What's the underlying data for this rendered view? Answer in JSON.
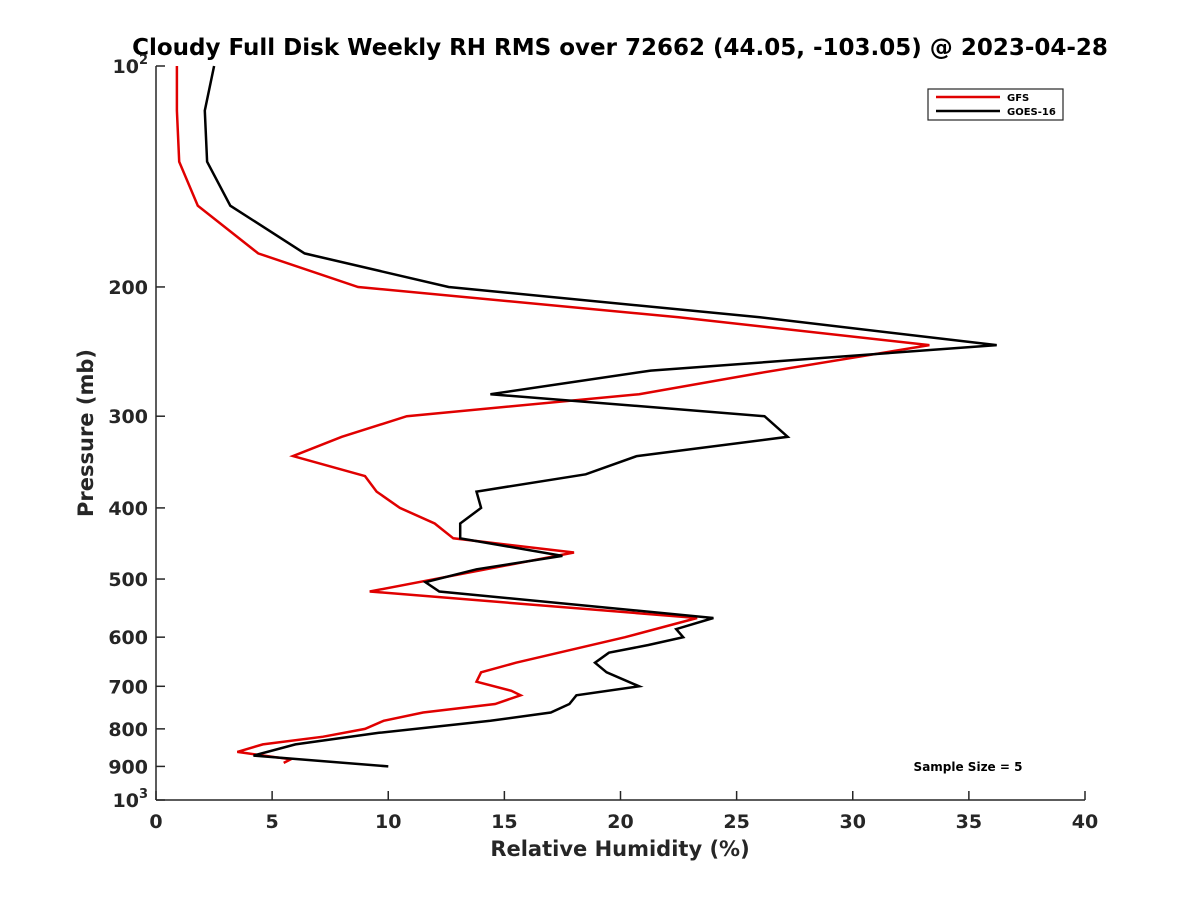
{
  "chart_data": {
    "type": "line",
    "title": "Cloudy Full Disk Weekly RH RMS over 72662 (44.05, -103.05) @ 2023-04-28",
    "xlabel": "Relative Humidity (%)",
    "ylabel": "Pressure (mb)",
    "xlim": [
      0,
      40
    ],
    "ylim": [
      100,
      1000
    ],
    "y_scale": "log",
    "y_reversed": true,
    "x_ticks": [
      "0",
      "5",
      "10",
      "15",
      "20",
      "25",
      "30",
      "35",
      "40"
    ],
    "y_ticks": [
      {
        "value": 100,
        "base": "10",
        "exp": "2"
      },
      {
        "value": 200,
        "label": "200"
      },
      {
        "value": 300,
        "label": "300"
      },
      {
        "value": 400,
        "label": "400"
      },
      {
        "value": 500,
        "label": "500"
      },
      {
        "value": 600,
        "label": "600"
      },
      {
        "value": 700,
        "label": "700"
      },
      {
        "value": 800,
        "label": "800"
      },
      {
        "value": 900,
        "label": "900"
      },
      {
        "value": 1000,
        "base": "10",
        "exp": "3"
      }
    ],
    "grid": false,
    "legend_position": "top-right",
    "note": "Sample Size = 5",
    "series": [
      {
        "name": "GFS",
        "color": "#e00000",
        "points": [
          [
            0.9,
            100
          ],
          [
            0.9,
            115
          ],
          [
            1.0,
            135
          ],
          [
            1.8,
            155
          ],
          [
            4.4,
            180
          ],
          [
            8.7,
            200
          ],
          [
            22.5,
            220
          ],
          [
            33.3,
            240
          ],
          [
            26.0,
            262
          ],
          [
            20.8,
            280
          ],
          [
            10.8,
            300
          ],
          [
            8.0,
            320
          ],
          [
            5.9,
            340
          ],
          [
            9.0,
            362
          ],
          [
            9.5,
            380
          ],
          [
            10.5,
            400
          ],
          [
            12.0,
            420
          ],
          [
            12.8,
            440
          ],
          [
            18.0,
            460
          ],
          [
            9.2,
            520
          ],
          [
            23.3,
            565
          ],
          [
            20.2,
            600
          ],
          [
            15.5,
            650
          ],
          [
            14.0,
            670
          ],
          [
            13.8,
            690
          ],
          [
            15.3,
            710
          ],
          [
            15.7,
            720
          ],
          [
            14.6,
            740
          ],
          [
            11.5,
            760
          ],
          [
            9.8,
            780
          ],
          [
            9.0,
            800
          ],
          [
            7.2,
            820
          ],
          [
            4.6,
            840
          ],
          [
            3.5,
            860
          ],
          [
            5.8,
            880
          ],
          [
            5.5,
            890
          ]
        ]
      },
      {
        "name": "GOES-16",
        "color": "#000000",
        "points": [
          [
            2.5,
            100
          ],
          [
            2.1,
            115
          ],
          [
            2.2,
            135
          ],
          [
            3.2,
            155
          ],
          [
            6.4,
            180
          ],
          [
            12.6,
            200
          ],
          [
            26.0,
            220
          ],
          [
            36.2,
            240
          ],
          [
            21.3,
            260
          ],
          [
            14.4,
            280
          ],
          [
            26.2,
            300
          ],
          [
            27.2,
            320
          ],
          [
            20.7,
            340
          ],
          [
            18.5,
            360
          ],
          [
            13.8,
            380
          ],
          [
            14.0,
            400
          ],
          [
            13.1,
            420
          ],
          [
            13.1,
            440
          ],
          [
            17.5,
            465
          ],
          [
            13.8,
            485
          ],
          [
            11.6,
            505
          ],
          [
            12.2,
            520
          ],
          [
            24.0,
            565
          ],
          [
            22.4,
            585
          ],
          [
            22.7,
            600
          ],
          [
            21.2,
            615
          ],
          [
            19.5,
            630
          ],
          [
            18.9,
            650
          ],
          [
            19.4,
            670
          ],
          [
            20.8,
            700
          ],
          [
            18.1,
            720
          ],
          [
            17.8,
            740
          ],
          [
            17.0,
            760
          ],
          [
            14.4,
            780
          ],
          [
            9.6,
            810
          ],
          [
            6.0,
            840
          ],
          [
            4.2,
            870
          ],
          [
            10.0,
            900
          ]
        ]
      }
    ]
  }
}
